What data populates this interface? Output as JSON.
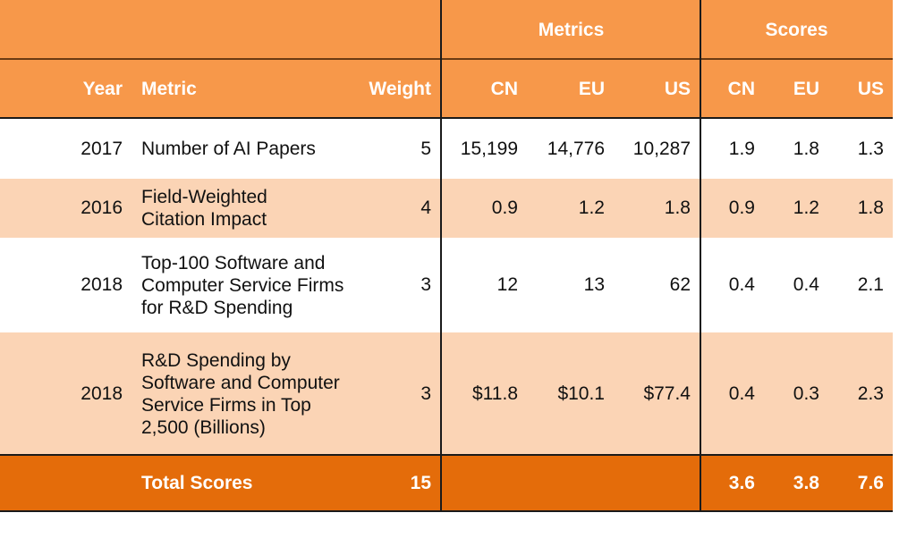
{
  "colors": {
    "header_bg": "#F7984A",
    "band_bg": "#FBD4B5",
    "white_bg": "#FFFFFF",
    "total_bg": "#E46C0A",
    "header_text": "#FFFFFF",
    "body_text": "#111111"
  },
  "group_headers": {
    "metrics": "Metrics",
    "scores": "Scores"
  },
  "columns": {
    "year": "Year",
    "metric": "Metric",
    "weight": "Weight",
    "m_cn": "CN",
    "m_eu": "EU",
    "m_us": "US",
    "s_cn": "CN",
    "s_eu": "EU",
    "s_us": "US"
  },
  "rows": [
    {
      "year": "2017",
      "metric": "Number of AI Papers",
      "weight": "5",
      "m_cn": "15,199",
      "m_eu": "14,776",
      "m_us": "10,287",
      "s_cn": "1.9",
      "s_eu": "1.8",
      "s_us": "1.3"
    },
    {
      "year": "2016",
      "metric": "Field-Weighted\nCitation Impact",
      "weight": "4",
      "m_cn": "0.9",
      "m_eu": "1.2",
      "m_us": "1.8",
      "s_cn": "0.9",
      "s_eu": "1.2",
      "s_us": "1.8"
    },
    {
      "year": "2018",
      "metric": "Top-100 Software and\nComputer Service Firms\nfor R&D Spending",
      "weight": "3",
      "m_cn": "12",
      "m_eu": "13",
      "m_us": "62",
      "s_cn": "0.4",
      "s_eu": "0.4",
      "s_us": "2.1"
    },
    {
      "year": "2018",
      "metric": "R&D Spending by\nSoftware and Computer\nService Firms in Top\n2,500 (Billions)",
      "weight": "3",
      "m_cn": "$11.8",
      "m_eu": "$10.1",
      "m_us": "$77.4",
      "s_cn": "0.4",
      "s_eu": "0.3",
      "s_us": "2.3"
    }
  ],
  "total": {
    "label": "Total Scores",
    "weight": "15",
    "s_cn": "3.6",
    "s_eu": "3.8",
    "s_us": "7.6"
  }
}
